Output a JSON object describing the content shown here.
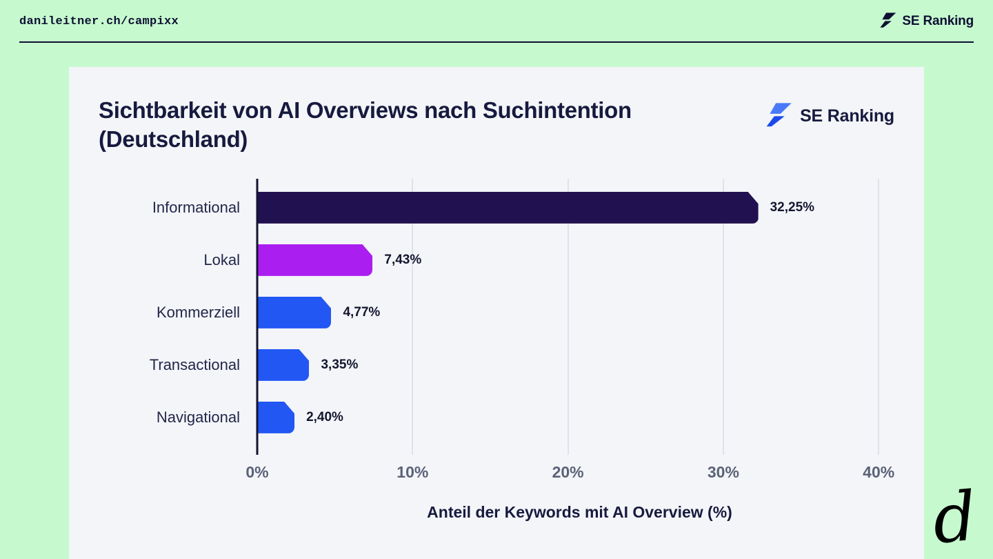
{
  "header": {
    "site_url": "danileitner.ch/campixx",
    "brand": "SE Ranking"
  },
  "card": {
    "brand": "SE Ranking"
  },
  "signature": "d",
  "chart_data": {
    "type": "bar",
    "orientation": "horizontal",
    "title": "Sichtbarkeit von AI Overviews nach Suchintention\n(Deutschland)",
    "categories": [
      "Informational",
      "Lokal",
      "Kommerziell",
      "Transactional",
      "Navigational"
    ],
    "values": [
      32.25,
      7.43,
      4.77,
      3.35,
      2.4
    ],
    "value_labels": [
      "32,25%",
      "7,43%",
      "4,77%",
      "3,35%",
      "2,40%"
    ],
    "bar_colors": [
      "#221150",
      "#ab1ef0",
      "#2257f4",
      "#2257f4",
      "#2257f4"
    ],
    "xlabel": "Anteil der Keywords mit AI Overview (%)",
    "x_ticks": [
      0,
      10,
      20,
      30,
      40
    ],
    "x_tick_labels": [
      "0%",
      "10%",
      "20%",
      "30%",
      "40%"
    ],
    "xlim": [
      0,
      41.5
    ],
    "grid": true,
    "legend": false
  },
  "colors": {
    "page_background": "#c7f9ce",
    "card_background": "#f3f5f8",
    "dark_navy": "#171a3e",
    "accent_blue": "#2257f4",
    "accent_purple": "#ab1ef0",
    "bar_dark": "#221150",
    "gridline": "#dee2ea"
  }
}
